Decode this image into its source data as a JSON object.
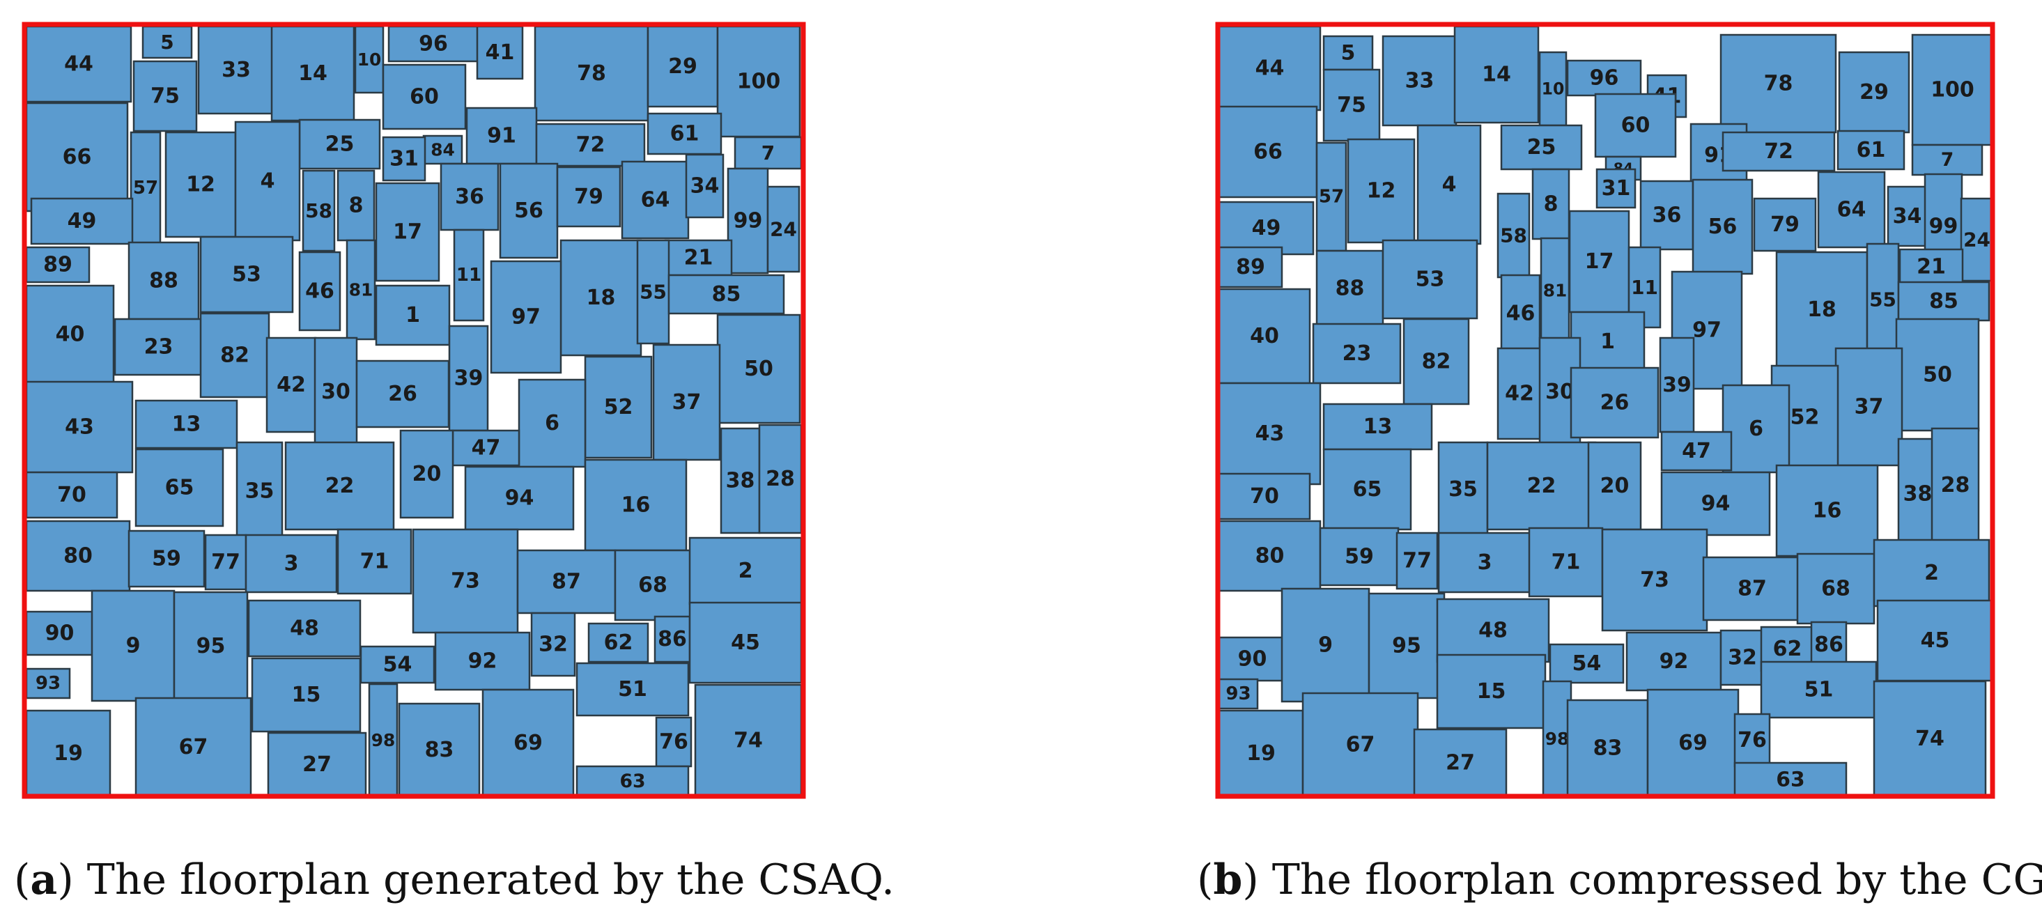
{
  "colors": {
    "block": "#5b9bcf",
    "boundary": "#ee1111",
    "text": "#1a1a1a"
  },
  "panel_a": {
    "caption_tag": "(a)",
    "caption_tag_letter": "a",
    "caption_text": "The floorplan generated by the CSAQ.",
    "block_labels": [
      "44",
      "5",
      "33",
      "14",
      "10",
      "96",
      "41",
      "78",
      "29",
      "100",
      "75",
      "60",
      "66",
      "91",
      "25",
      "84",
      "72",
      "61",
      "31",
      "7",
      "57",
      "12",
      "4",
      "58",
      "8",
      "36",
      "56",
      "79",
      "64",
      "34",
      "49",
      "17",
      "99",
      "24",
      "89",
      "21",
      "88",
      "53",
      "11",
      "18",
      "55",
      "85",
      "46",
      "81",
      "1",
      "97",
      "40",
      "23",
      "82",
      "39",
      "42",
      "30",
      "26",
      "50",
      "37",
      "52",
      "6",
      "43",
      "13",
      "47",
      "38",
      "28",
      "65",
      "35",
      "22",
      "20",
      "70",
      "94",
      "16",
      "80",
      "59",
      "77",
      "3",
      "71",
      "73",
      "87",
      "68",
      "2",
      "90",
      "9",
      "95",
      "48",
      "32",
      "62",
      "86",
      "45",
      "54",
      "92",
      "93",
      "15",
      "51",
      "19",
      "67",
      "98",
      "83",
      "69",
      "76",
      "74",
      "27",
      "63"
    ]
  },
  "panel_b": {
    "caption_tag": "(b)",
    "caption_tag_letter": "b",
    "caption_text": "The floorplan compressed by the CG.",
    "block_labels": [
      "44",
      "5",
      "33",
      "14",
      "10",
      "96",
      "41",
      "78",
      "29",
      "100",
      "75",
      "60",
      "66",
      "91",
      "25",
      "84",
      "72",
      "61",
      "7",
      "31",
      "57",
      "12",
      "4",
      "36",
      "58",
      "8",
      "56",
      "79",
      "64",
      "34",
      "99",
      "24",
      "49",
      "89",
      "88",
      "53",
      "17",
      "21",
      "11",
      "18",
      "55",
      "85",
      "46",
      "81",
      "1",
      "97",
      "40",
      "23",
      "82",
      "39",
      "42",
      "30",
      "26",
      "50",
      "37",
      "52",
      "6",
      "43",
      "13",
      "47",
      "38",
      "28",
      "65",
      "35",
      "22",
      "20",
      "70",
      "94",
      "16",
      "80",
      "59",
      "77",
      "3",
      "71",
      "73",
      "87",
      "68",
      "2",
      "90",
      "9",
      "95",
      "48",
      "45",
      "54",
      "92",
      "32",
      "62",
      "86",
      "93",
      "15",
      "51",
      "19",
      "67",
      "27",
      "98",
      "83",
      "69",
      "76",
      "74",
      "63"
    ]
  }
}
